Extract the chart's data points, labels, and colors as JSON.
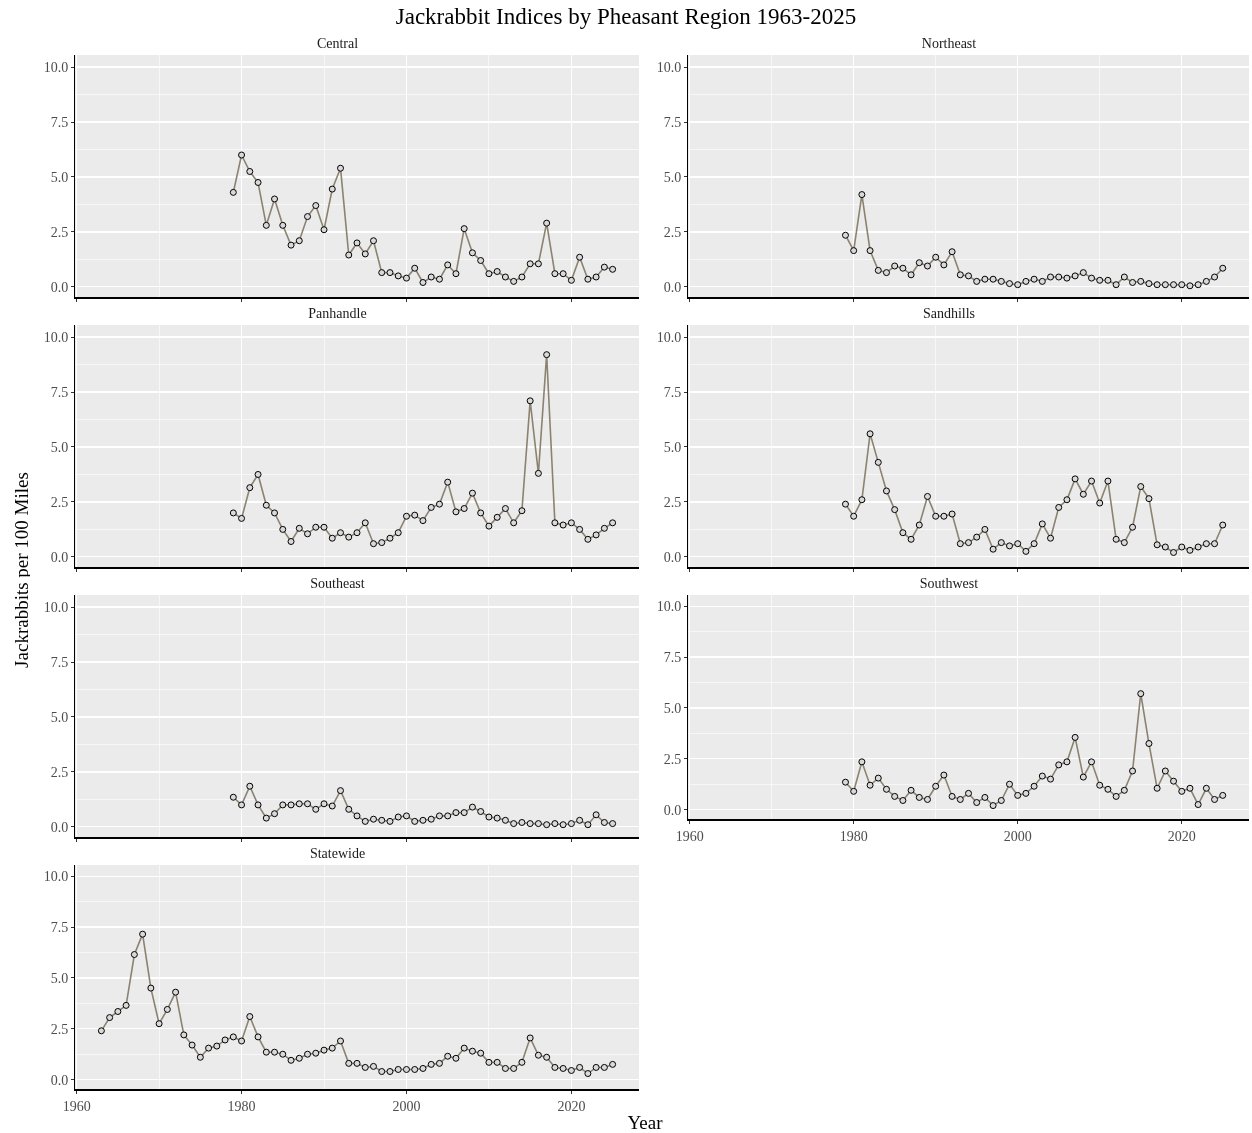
{
  "chart_data": [
    {
      "type": "line",
      "title": "Central",
      "annotations": [
        "Jackrabbit Indices by Pheasant Region 1963-2025"
      ],
      "tick_labels": "y",
      "marker": "circle",
      "grid": true,
      "xlim": [
        1959.8,
        2028.2
      ],
      "xticks": [
        1960,
        1980,
        2000,
        2020
      ],
      "ylim": [
        -0.46,
        10.55
      ],
      "yticks": [
        {
          "value": 0,
          "label": "0.0"
        },
        {
          "value": 2.5,
          "label": "2.5"
        },
        {
          "value": 5,
          "label": "5.0"
        },
        {
          "value": 7.5,
          "label": "7.5"
        },
        {
          "value": 10,
          "label": "10.0"
        }
      ],
      "x": [
        1979,
        1980,
        1981,
        1982,
        1983,
        1984,
        1985,
        1986,
        1987,
        1988,
        1989,
        1990,
        1991,
        1992,
        1993,
        1994,
        1995,
        1996,
        1997,
        1998,
        1999,
        2000,
        2001,
        2002,
        2003,
        2004,
        2005,
        2006,
        2007,
        2008,
        2009,
        2010,
        2011,
        2012,
        2013,
        2014,
        2015,
        2016,
        2017,
        2018,
        2019,
        2020,
        2021,
        2022,
        2023,
        2024,
        2025
      ],
      "series": [
        {
          "color": "#8c8270",
          "values": [
            4.3,
            6.0,
            5.25,
            4.75,
            2.8,
            4.0,
            2.8,
            1.9,
            2.1,
            3.2,
            3.7,
            2.6,
            4.45,
            5.4,
            1.45,
            2.0,
            1.5,
            2.1,
            0.65,
            0.65,
            0.5,
            0.4,
            0.85,
            0.2,
            0.45,
            0.35,
            1.0,
            0.6,
            2.65,
            1.55,
            1.2,
            0.6,
            0.7,
            0.45,
            0.25,
            0.45,
            1.05,
            1.05,
            2.9,
            0.6,
            0.6,
            0.3,
            1.35,
            0.35,
            0.45,
            0.9,
            0.8
          ]
        }
      ]
    },
    {
      "type": "line",
      "title": "Northeast",
      "tick_labels": "y",
      "marker": "circle",
      "grid": true,
      "xlim": [
        1959.8,
        2028.2
      ],
      "xticks": [
        1960,
        1980,
        2000,
        2020
      ],
      "ylim": [
        -0.46,
        10.55
      ],
      "yticks": [
        {
          "value": 0,
          "label": "0.0"
        },
        {
          "value": 2.5,
          "label": "2.5"
        },
        {
          "value": 5,
          "label": "5.0"
        },
        {
          "value": 7.5,
          "label": "7.5"
        },
        {
          "value": 10,
          "label": "10.0"
        }
      ],
      "x": [
        1979,
        1980,
        1981,
        1982,
        1983,
        1984,
        1985,
        1986,
        1987,
        1988,
        1989,
        1990,
        1991,
        1992,
        1993,
        1994,
        1995,
        1996,
        1997,
        1998,
        1999,
        2000,
        2001,
        2002,
        2003,
        2004,
        2005,
        2006,
        2007,
        2008,
        2009,
        2010,
        2011,
        2012,
        2013,
        2014,
        2015,
        2016,
        2017,
        2018,
        2019,
        2020,
        2021,
        2022,
        2023,
        2024,
        2025
      ],
      "series": [
        {
          "color": "#8c8270",
          "values": [
            2.35,
            1.65,
            4.2,
            1.65,
            0.75,
            0.65,
            0.95,
            0.85,
            0.55,
            1.1,
            0.95,
            1.35,
            1.0,
            1.6,
            0.55,
            0.5,
            0.25,
            0.35,
            0.35,
            0.25,
            0.15,
            0.1,
            0.25,
            0.35,
            0.25,
            0.45,
            0.45,
            0.4,
            0.5,
            0.65,
            0.4,
            0.3,
            0.3,
            0.1,
            0.45,
            0.2,
            0.25,
            0.15,
            0.1,
            0.1,
            0.1,
            0.1,
            0.05,
            0.1,
            0.25,
            0.45,
            0.85
          ]
        }
      ]
    },
    {
      "type": "line",
      "title": "Panhandle",
      "ylabel": "Jackrabbits per 100 Miles",
      "tick_labels": "y",
      "marker": "circle",
      "grid": true,
      "xlim": [
        1959.8,
        2028.2
      ],
      "xticks": [
        1960,
        1980,
        2000,
        2020
      ],
      "ylim": [
        -0.46,
        10.55
      ],
      "yticks": [
        {
          "value": 0,
          "label": "0.0"
        },
        {
          "value": 2.5,
          "label": "2.5"
        },
        {
          "value": 5,
          "label": "5.0"
        },
        {
          "value": 7.5,
          "label": "7.5"
        },
        {
          "value": 10,
          "label": "10.0"
        }
      ],
      "x": [
        1979,
        1980,
        1981,
        1982,
        1983,
        1984,
        1985,
        1986,
        1987,
        1988,
        1989,
        1990,
        1991,
        1992,
        1993,
        1994,
        1995,
        1996,
        1997,
        1998,
        1999,
        2000,
        2001,
        2002,
        2003,
        2004,
        2005,
        2006,
        2007,
        2008,
        2009,
        2010,
        2011,
        2012,
        2013,
        2014,
        2015,
        2016,
        2017,
        2018,
        2019,
        2020,
        2021,
        2022,
        2023,
        2024,
        2025
      ],
      "series": [
        {
          "color": "#8c8270",
          "values": [
            2.0,
            1.75,
            3.15,
            3.75,
            2.35,
            2.0,
            1.25,
            0.7,
            1.3,
            1.05,
            1.35,
            1.35,
            0.85,
            1.1,
            0.9,
            1.1,
            1.55,
            0.6,
            0.65,
            0.85,
            1.1,
            1.85,
            1.9,
            1.65,
            2.25,
            2.4,
            3.4,
            2.05,
            2.2,
            2.9,
            2.0,
            1.4,
            1.8,
            2.2,
            1.55,
            2.1,
            7.1,
            3.8,
            9.2,
            1.55,
            1.45,
            1.55,
            1.25,
            0.8,
            1.0,
            1.3,
            1.55
          ]
        }
      ]
    },
    {
      "type": "line",
      "title": "Sandhills",
      "tick_labels": "y",
      "marker": "circle",
      "grid": true,
      "xlim": [
        1959.8,
        2028.2
      ],
      "xticks": [
        1960,
        1980,
        2000,
        2020
      ],
      "ylim": [
        -0.46,
        10.55
      ],
      "yticks": [
        {
          "value": 0,
          "label": "0.0"
        },
        {
          "value": 2.5,
          "label": "2.5"
        },
        {
          "value": 5,
          "label": "5.0"
        },
        {
          "value": 7.5,
          "label": "7.5"
        },
        {
          "value": 10,
          "label": "10.0"
        }
      ],
      "x": [
        1979,
        1980,
        1981,
        1982,
        1983,
        1984,
        1985,
        1986,
        1987,
        1988,
        1989,
        1990,
        1991,
        1992,
        1993,
        1994,
        1995,
        1996,
        1997,
        1998,
        1999,
        2000,
        2001,
        2002,
        2003,
        2004,
        2005,
        2006,
        2007,
        2008,
        2009,
        2010,
        2011,
        2012,
        2013,
        2014,
        2015,
        2016,
        2017,
        2018,
        2019,
        2020,
        2021,
        2022,
        2023,
        2024,
        2025
      ],
      "series": [
        {
          "color": "#8c8270",
          "values": [
            2.4,
            1.85,
            2.6,
            5.6,
            4.3,
            3.0,
            2.15,
            1.1,
            0.8,
            1.45,
            2.75,
            1.85,
            1.85,
            1.95,
            0.6,
            0.65,
            0.9,
            1.25,
            0.35,
            0.65,
            0.5,
            0.6,
            0.25,
            0.6,
            1.5,
            0.85,
            2.25,
            2.6,
            3.55,
            2.85,
            3.45,
            2.45,
            3.45,
            0.8,
            0.65,
            1.35,
            3.2,
            2.65,
            0.55,
            0.45,
            0.2,
            0.45,
            0.3,
            0.45,
            0.6,
            0.6,
            1.45
          ]
        }
      ]
    },
    {
      "type": "line",
      "title": "Southeast",
      "tick_labels": "y",
      "marker": "circle",
      "grid": true,
      "xlim": [
        1959.8,
        2028.2
      ],
      "xticks": [
        1960,
        1980,
        2000,
        2020
      ],
      "ylim": [
        -0.46,
        10.55
      ],
      "yticks": [
        {
          "value": 0,
          "label": "0.0"
        },
        {
          "value": 2.5,
          "label": "2.5"
        },
        {
          "value": 5,
          "label": "5.0"
        },
        {
          "value": 7.5,
          "label": "7.5"
        },
        {
          "value": 10,
          "label": "10.0"
        }
      ],
      "x": [
        1979,
        1980,
        1981,
        1982,
        1983,
        1984,
        1985,
        1986,
        1987,
        1988,
        1989,
        1990,
        1991,
        1992,
        1993,
        1994,
        1995,
        1996,
        1997,
        1998,
        1999,
        2000,
        2001,
        2002,
        2003,
        2004,
        2005,
        2006,
        2007,
        2008,
        2009,
        2010,
        2011,
        2012,
        2013,
        2014,
        2015,
        2016,
        2017,
        2018,
        2019,
        2020,
        2021,
        2022,
        2023,
        2024,
        2025
      ],
      "series": [
        {
          "color": "#8c8270",
          "values": [
            1.35,
            1.0,
            1.85,
            1.0,
            0.4,
            0.6,
            1.0,
            1.0,
            1.05,
            1.05,
            0.8,
            1.05,
            0.95,
            1.65,
            0.8,
            0.5,
            0.25,
            0.35,
            0.3,
            0.25,
            0.45,
            0.5,
            0.25,
            0.3,
            0.35,
            0.5,
            0.5,
            0.65,
            0.65,
            0.9,
            0.7,
            0.45,
            0.4,
            0.3,
            0.15,
            0.2,
            0.15,
            0.15,
            0.1,
            0.15,
            0.1,
            0.15,
            0.3,
            0.1,
            0.55,
            0.2,
            0.15
          ]
        }
      ]
    },
    {
      "type": "line",
      "title": "Southwest",
      "marker": "circle",
      "grid": true,
      "xlim": [
        1959.8,
        2028.2
      ],
      "xticks": [
        1960,
        1980,
        2000,
        2020
      ],
      "ylim": [
        -0.46,
        10.55
      ],
      "yticks": [
        {
          "value": 0,
          "label": "0.0"
        },
        {
          "value": 2.5,
          "label": "2.5"
        },
        {
          "value": 5,
          "label": "5.0"
        },
        {
          "value": 7.5,
          "label": "7.5"
        },
        {
          "value": 10,
          "label": "10.0"
        }
      ],
      "x": [
        1979,
        1980,
        1981,
        1982,
        1983,
        1984,
        1985,
        1986,
        1987,
        1988,
        1989,
        1990,
        1991,
        1992,
        1993,
        1994,
        1995,
        1996,
        1997,
        1998,
        1999,
        2000,
        2001,
        2002,
        2003,
        2004,
        2005,
        2006,
        2007,
        2008,
        2009,
        2010,
        2011,
        2012,
        2013,
        2014,
        2015,
        2016,
        2017,
        2018,
        2019,
        2020,
        2021,
        2022,
        2023,
        2024,
        2025
      ],
      "series": [
        {
          "color": "#8c8270",
          "values": [
            1.35,
            0.9,
            2.35,
            1.2,
            1.55,
            1.0,
            0.65,
            0.45,
            0.95,
            0.6,
            0.5,
            1.15,
            1.7,
            0.65,
            0.5,
            0.8,
            0.35,
            0.6,
            0.2,
            0.45,
            1.25,
            0.7,
            0.8,
            1.15,
            1.65,
            1.5,
            2.2,
            2.35,
            3.55,
            1.6,
            2.35,
            1.2,
            1.0,
            0.65,
            0.95,
            1.9,
            5.7,
            3.25,
            1.05,
            1.9,
            1.4,
            0.9,
            1.05,
            0.25,
            1.05,
            0.5,
            0.7
          ]
        }
      ]
    },
    {
      "type": "line",
      "title": "Statewide",
      "xlabel": "Year",
      "marker": "circle",
      "grid": true,
      "xlim": [
        1959.8,
        2028.2
      ],
      "xticks": [
        1960,
        1980,
        2000,
        2020
      ],
      "ylim": [
        -0.46,
        10.55
      ],
      "yticks": [
        {
          "value": 0,
          "label": "0.0"
        },
        {
          "value": 2.5,
          "label": "2.5"
        },
        {
          "value": 5,
          "label": "5.0"
        },
        {
          "value": 7.5,
          "label": "7.5"
        },
        {
          "value": 10,
          "label": "10.0"
        }
      ],
      "x": [
        1963,
        1964,
        1965,
        1966,
        1967,
        1968,
        1969,
        1970,
        1971,
        1972,
        1973,
        1974,
        1975,
        1976,
        1977,
        1978,
        1979,
        1980,
        1981,
        1982,
        1983,
        1984,
        1985,
        1986,
        1987,
        1988,
        1989,
        1990,
        1991,
        1992,
        1993,
        1994,
        1995,
        1996,
        1997,
        1998,
        1999,
        2000,
        2001,
        2002,
        2003,
        2004,
        2005,
        2006,
        2007,
        2008,
        2009,
        2010,
        2011,
        2012,
        2013,
        2014,
        2015,
        2016,
        2017,
        2018,
        2019,
        2020,
        2021,
        2022,
        2023,
        2024,
        2025
      ],
      "series": [
        {
          "color": "#8c8270",
          "values": [
            2.4,
            3.05,
            3.35,
            3.65,
            6.15,
            7.15,
            4.5,
            2.75,
            3.45,
            4.3,
            2.2,
            1.7,
            1.1,
            1.55,
            1.65,
            1.95,
            2.1,
            1.9,
            3.1,
            2.1,
            1.35,
            1.35,
            1.25,
            0.95,
            1.05,
            1.25,
            1.3,
            1.45,
            1.55,
            1.9,
            0.8,
            0.8,
            0.6,
            0.65,
            0.4,
            0.4,
            0.5,
            0.5,
            0.5,
            0.55,
            0.75,
            0.8,
            1.15,
            1.05,
            1.55,
            1.4,
            1.3,
            0.85,
            0.85,
            0.55,
            0.55,
            0.85,
            2.05,
            1.2,
            1.1,
            0.6,
            0.55,
            0.45,
            0.6,
            0.3,
            0.6,
            0.6,
            0.75
          ]
        }
      ]
    }
  ]
}
